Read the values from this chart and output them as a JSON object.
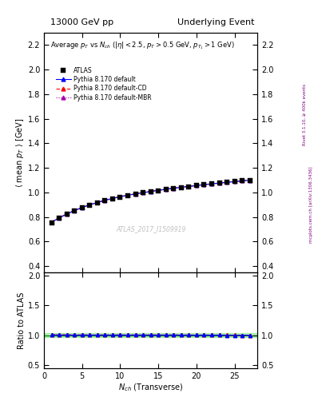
{
  "title_left": "13000 GeV pp",
  "title_right": "Underlying Event",
  "main_title": "Average $p_T$ vs $N_{ch}$ ($|\\eta| < 2.5$, $p_T > 0.5$ GeV, $p_{T_1} > 1$ GeV)",
  "watermark": "ATLAS_2017_I1509919",
  "right_label_top": "Rivet 3.1.10, ≥ 400k events",
  "right_label_bottom": "mcplots.cern.ch [arXiv:1306.3436]",
  "xlabel": "$N_{ch}$ (Transverse)",
  "ylabel_main": "$\\langle$ mean $p_T$ $\\rangle$ [GeV]",
  "ylabel_ratio": "Ratio to ATLAS",
  "xlim": [
    0,
    28
  ],
  "ylim_main": [
    0.35,
    2.3
  ],
  "ylim_ratio": [
    0.45,
    2.05
  ],
  "yticks_main": [
    0.4,
    0.6,
    0.8,
    1.0,
    1.2,
    1.4,
    1.6,
    1.8,
    2.0,
    2.2
  ],
  "yticks_ratio": [
    0.5,
    1.0,
    1.5,
    2.0
  ],
  "xticks": [
    0,
    5,
    10,
    15,
    20,
    25
  ],
  "atlas_x": [
    1,
    2,
    3,
    4,
    5,
    6,
    7,
    8,
    9,
    10,
    11,
    12,
    13,
    14,
    15,
    16,
    17,
    18,
    19,
    20,
    21,
    22,
    23,
    24,
    25,
    26,
    27
  ],
  "atlas_y": [
    0.754,
    0.791,
    0.822,
    0.851,
    0.876,
    0.897,
    0.917,
    0.934,
    0.95,
    0.963,
    0.975,
    0.986,
    0.996,
    1.006,
    1.015,
    1.024,
    1.032,
    1.04,
    1.048,
    1.055,
    1.062,
    1.069,
    1.075,
    1.082,
    1.088,
    1.094,
    1.1
  ],
  "pythia_default_x": [
    1,
    2,
    3,
    4,
    5,
    6,
    7,
    8,
    9,
    10,
    11,
    12,
    13,
    14,
    15,
    16,
    17,
    18,
    19,
    20,
    21,
    22,
    23,
    24,
    25,
    26,
    27
  ],
  "pythia_default_y": [
    0.757,
    0.793,
    0.824,
    0.852,
    0.877,
    0.899,
    0.918,
    0.936,
    0.951,
    0.965,
    0.977,
    0.988,
    0.998,
    1.008,
    1.017,
    1.026,
    1.034,
    1.042,
    1.049,
    1.056,
    1.063,
    1.07,
    1.076,
    1.082,
    1.088,
    1.094,
    1.1
  ],
  "pythia_cd_x": [
    1,
    2,
    3,
    4,
    5,
    6,
    7,
    8,
    9,
    10,
    11,
    12,
    13,
    14,
    15,
    16,
    17,
    18,
    19,
    20,
    21,
    22,
    23,
    24,
    25,
    26,
    27
  ],
  "pythia_cd_y": [
    0.76,
    0.795,
    0.826,
    0.854,
    0.879,
    0.9,
    0.919,
    0.937,
    0.952,
    0.966,
    0.978,
    0.989,
    0.999,
    1.009,
    1.018,
    1.026,
    1.035,
    1.042,
    1.05,
    1.057,
    1.064,
    1.07,
    1.077,
    1.083,
    1.089,
    1.094,
    1.1
  ],
  "pythia_mbr_x": [
    1,
    2,
    3,
    4,
    5,
    6,
    7,
    8,
    9,
    10,
    11,
    12,
    13,
    14,
    15,
    16,
    17,
    18,
    19,
    20,
    21,
    22,
    23,
    24,
    25,
    26,
    27
  ],
  "pythia_mbr_y": [
    0.758,
    0.794,
    0.825,
    0.853,
    0.878,
    0.899,
    0.918,
    0.936,
    0.951,
    0.965,
    0.977,
    0.988,
    0.998,
    1.008,
    1.017,
    1.026,
    1.034,
    1.042,
    1.049,
    1.056,
    1.063,
    1.07,
    1.076,
    1.082,
    1.088,
    1.094,
    1.1
  ],
  "color_atlas": "#000000",
  "color_default": "#0000FF",
  "color_cd": "#FF0000",
  "color_mbr": "#AA00AA",
  "color_band": "#90EE90",
  "legend_entries": [
    "ATLAS",
    "Pythia 8.170 default",
    "Pythia 8.170 default-CD",
    "Pythia 8.170 default-MBR"
  ]
}
